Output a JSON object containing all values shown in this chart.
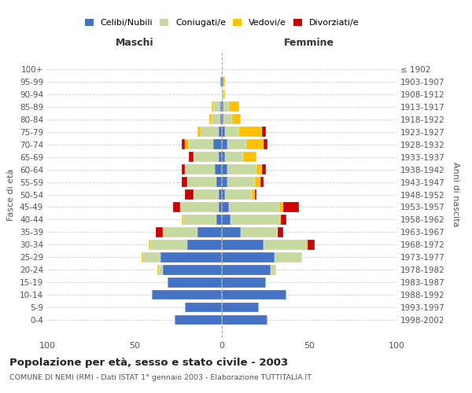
{
  "age_groups": [
    "0-4",
    "5-9",
    "10-14",
    "15-19",
    "20-24",
    "25-29",
    "30-34",
    "35-39",
    "40-44",
    "45-49",
    "50-54",
    "55-59",
    "60-64",
    "65-69",
    "70-74",
    "75-79",
    "80-84",
    "85-89",
    "90-94",
    "95-99",
    "100+"
  ],
  "birth_years": [
    "1998-2002",
    "1993-1997",
    "1988-1992",
    "1983-1987",
    "1978-1982",
    "1973-1977",
    "1968-1972",
    "1963-1967",
    "1958-1962",
    "1953-1957",
    "1948-1952",
    "1943-1947",
    "1938-1942",
    "1933-1937",
    "1928-1932",
    "1923-1927",
    "1918-1922",
    "1913-1917",
    "1908-1912",
    "1903-1907",
    "≤ 1902"
  ],
  "males": {
    "celibi": [
      27,
      21,
      40,
      31,
      34,
      35,
      20,
      14,
      3,
      2,
      2,
      3,
      4,
      2,
      5,
      2,
      1,
      1,
      0,
      1,
      0
    ],
    "coniugati": [
      0,
      0,
      0,
      0,
      2,
      10,
      21,
      20,
      19,
      22,
      14,
      17,
      17,
      14,
      14,
      10,
      5,
      4,
      0,
      0,
      0
    ],
    "vedovi": [
      0,
      0,
      0,
      0,
      1,
      1,
      1,
      0,
      1,
      0,
      0,
      0,
      0,
      0,
      2,
      2,
      1,
      1,
      0,
      0,
      0
    ],
    "divorziati": [
      0,
      0,
      0,
      0,
      0,
      0,
      0,
      4,
      0,
      4,
      5,
      3,
      2,
      3,
      2,
      0,
      0,
      0,
      0,
      0,
      0
    ]
  },
  "females": {
    "celibi": [
      26,
      21,
      37,
      25,
      28,
      30,
      24,
      11,
      5,
      4,
      2,
      3,
      3,
      2,
      3,
      2,
      1,
      1,
      0,
      1,
      0
    ],
    "coniugati": [
      0,
      0,
      0,
      0,
      3,
      16,
      24,
      21,
      28,
      29,
      15,
      16,
      17,
      10,
      11,
      8,
      5,
      3,
      1,
      0,
      0
    ],
    "vedovi": [
      0,
      0,
      0,
      0,
      0,
      0,
      1,
      0,
      1,
      2,
      2,
      3,
      3,
      8,
      10,
      13,
      5,
      6,
      1,
      1,
      0
    ],
    "divorziati": [
      0,
      0,
      0,
      0,
      0,
      0,
      4,
      3,
      3,
      9,
      1,
      2,
      2,
      0,
      2,
      2,
      0,
      0,
      0,
      0,
      0
    ]
  },
  "colors": {
    "celibi": "#4472c4",
    "coniugati": "#c5d9a0",
    "vedovi": "#ffc000",
    "divorziati": "#cc0000"
  },
  "xlim": 100,
  "title": "Popolazione per età, sesso e stato civile - 2003",
  "subtitle": "COMUNE DI NEMI (RM) - Dati ISTAT 1° gennaio 2003 - Elaborazione TUTTITALIA.IT",
  "ylabel_left": "Fasce di età",
  "ylabel_right": "Anni di nascita",
  "xlabel_maschi": "Maschi",
  "xlabel_femmine": "Femmine",
  "legend_labels": [
    "Celibi/Nubili",
    "Coniugati/e",
    "Vedovi/e",
    "Divorziati/e"
  ],
  "bg_color": "#ffffff",
  "grid_color": "#cccccc"
}
